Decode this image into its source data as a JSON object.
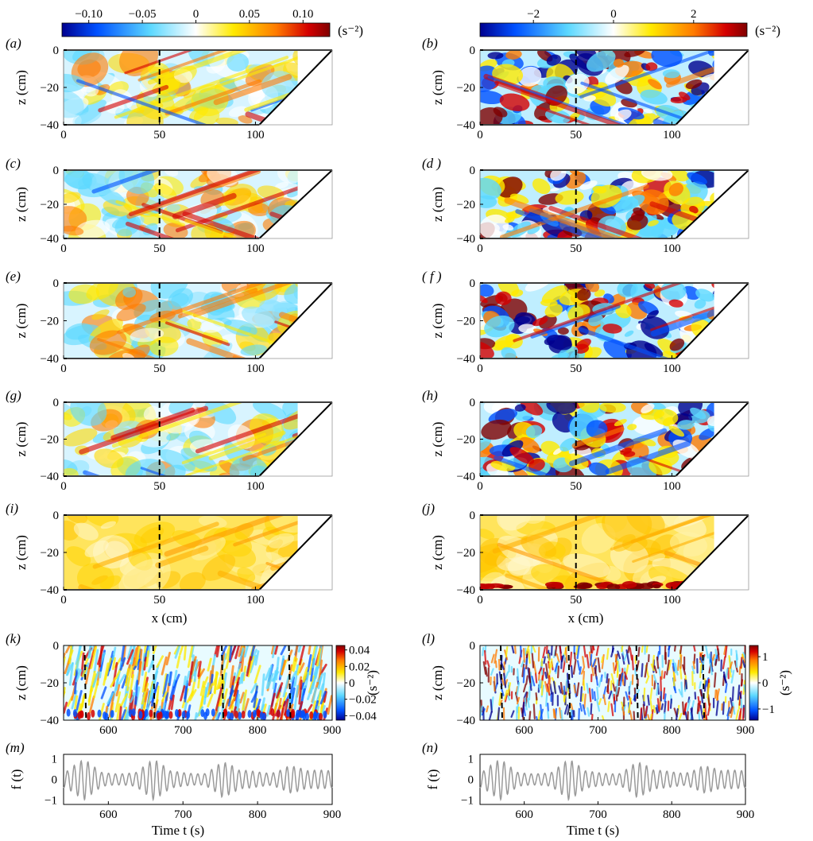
{
  "panels": [
    {
      "id": "a",
      "label": "(a)",
      "kind": "snapshot",
      "col": 0,
      "row": 0,
      "ylabel": "z (cm)",
      "xticks": [
        "0",
        "50",
        "100"
      ],
      "yticks": [
        "0",
        "−20",
        "−40"
      ],
      "colormap": "diverging",
      "noise": "low"
    },
    {
      "id": "b",
      "label": "(b)",
      "kind": "snapshot",
      "col": 1,
      "row": 0,
      "ylabel": "z (cm)",
      "xticks": [
        "0",
        "50",
        "100"
      ],
      "yticks": [
        "0",
        "−20",
        "−40"
      ],
      "colormap": "diverging",
      "noise": "high"
    },
    {
      "id": "c",
      "label": "(c)",
      "kind": "snapshot",
      "col": 0,
      "row": 1,
      "ylabel": "z (cm)",
      "xticks": [
        "0",
        "50",
        "100"
      ],
      "yticks": [
        "0",
        "−20",
        "−40"
      ],
      "colormap": "diverging",
      "noise": "low"
    },
    {
      "id": "d",
      "label": "(d )",
      "kind": "snapshot",
      "col": 1,
      "row": 1,
      "ylabel": "z (cm)",
      "xticks": [
        "0",
        "50",
        "100"
      ],
      "yticks": [
        "0",
        "−20",
        "−40"
      ],
      "colormap": "diverging",
      "noise": "high"
    },
    {
      "id": "e",
      "label": "(e)",
      "kind": "snapshot",
      "col": 0,
      "row": 2,
      "ylabel": "z (cm)",
      "xticks": [
        "0",
        "50",
        "100"
      ],
      "yticks": [
        "0",
        "−20",
        "−40"
      ],
      "colormap": "diverging",
      "noise": "low"
    },
    {
      "id": "f",
      "label": "( f )",
      "kind": "snapshot",
      "col": 1,
      "row": 2,
      "ylabel": "z (cm)",
      "xticks": [
        "0",
        "50",
        "100"
      ],
      "yticks": [
        "0",
        "−20",
        "−40"
      ],
      "colormap": "diverging",
      "noise": "high"
    },
    {
      "id": "g",
      "label": "(g)",
      "kind": "snapshot",
      "col": 0,
      "row": 3,
      "ylabel": "z (cm)",
      "xticks": [
        "0",
        "50",
        "100"
      ],
      "yticks": [
        "0",
        "−20",
        "−40"
      ],
      "colormap": "diverging",
      "noise": "low"
    },
    {
      "id": "h",
      "label": "(h)",
      "kind": "snapshot",
      "col": 1,
      "row": 3,
      "ylabel": "z (cm)",
      "xticks": [
        "0",
        "50",
        "100"
      ],
      "yticks": [
        "0",
        "−20",
        "−40"
      ],
      "colormap": "diverging",
      "noise": "high"
    },
    {
      "id": "i",
      "label": "(i)",
      "kind": "snapshot",
      "col": 0,
      "row": 4,
      "ylabel": "z (cm)",
      "xticks": [
        "0",
        "50",
        "100"
      ],
      "yticks": [
        "0",
        "−20",
        "−40"
      ],
      "colormap": "positive",
      "noise": "low"
    },
    {
      "id": "j",
      "label": "(j)",
      "kind": "snapshot",
      "col": 1,
      "row": 4,
      "ylabel": "z (cm)",
      "xticks": [
        "0",
        "50",
        "100"
      ],
      "yticks": [
        "0",
        "−20",
        "−40"
      ],
      "colormap": "positive",
      "noise": "high"
    },
    {
      "id": "k",
      "label": "(k)",
      "kind": "hovmoller",
      "col": 0,
      "row": 5,
      "ylabel": "z (cm)",
      "xticks": [
        "600",
        "700",
        "800",
        "900"
      ],
      "yticks": [
        "0",
        "−20",
        "−40"
      ],
      "noise": "low"
    },
    {
      "id": "l",
      "label": "(l)",
      "kind": "hovmoller",
      "col": 1,
      "row": 5,
      "ylabel": "z (cm)",
      "xticks": [
        "600",
        "700",
        "800",
        "900"
      ],
      "yticks": [
        "0",
        "−20",
        "−40"
      ],
      "noise": "high"
    },
    {
      "id": "m",
      "label": "(m)",
      "kind": "signal",
      "col": 0,
      "row": 6,
      "ylabel": "f (t)",
      "xticks": [
        "600",
        "700",
        "800",
        "900"
      ],
      "yticks": [
        "1",
        "0",
        "−1"
      ]
    },
    {
      "id": "n",
      "label": "(n)",
      "kind": "signal",
      "col": 1,
      "row": 6,
      "ylabel": "f (t)",
      "xticks": [
        "600",
        "700",
        "800",
        "900"
      ],
      "yticks": [
        "1",
        "0",
        "−1"
      ]
    }
  ],
  "colorbars": {
    "top_left": {
      "ticks": [
        "−0.10",
        "−0.05",
        "0",
        "0.05",
        "0.10"
      ],
      "unit": "(s⁻²)"
    },
    "top_right": {
      "ticks": [
        "−2",
        "0",
        "2"
      ],
      "unit": "(s⁻²)"
    },
    "k": {
      "ticks": [
        "0.04",
        "0.02",
        "0",
        "−0.02",
        "−0.04"
      ],
      "unit": "(s⁻²)"
    },
    "l": {
      "ticks": [
        "1",
        "0",
        "−1"
      ],
      "unit": "(s⁻²)"
    }
  },
  "xlabels": {
    "snapshot": "x (cm)",
    "time": "Time t (s)"
  },
  "snapshot_domain": {
    "x_range": [
      0,
      140
    ],
    "z_range": [
      -40,
      0
    ],
    "slope_bottom_x": 102,
    "data_x_max": 122,
    "dashed_line_x": 50
  },
  "time_domain": {
    "t_range": [
      540,
      900
    ],
    "dashed_t": [
      568,
      660,
      752,
      842
    ]
  },
  "colors": {
    "dark_blue": "#00008f",
    "blue": "#0050ff",
    "cyan": "#5cd8ff",
    "white": "#ffffff",
    "yellow": "#ffea00",
    "orange": "#ff7b00",
    "red": "#d40000",
    "dark_red": "#800000",
    "signal_line": "#9a9a9a"
  }
}
